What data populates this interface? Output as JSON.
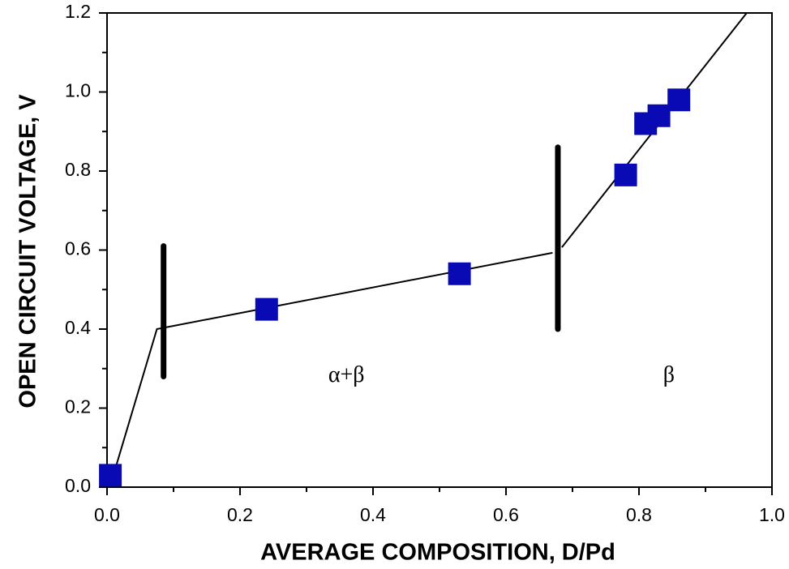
{
  "chart_data": {
    "type": "scatter",
    "x_label": "AVERAGE COMPOSITION, D/Pd",
    "y_label": "OPEN CIRCUIT VOLTAGE, V",
    "x": [
      0.005,
      0.24,
      0.53,
      0.78,
      0.81,
      0.83,
      0.86
    ],
    "values": [
      0.03,
      0.45,
      0.54,
      0.79,
      0.92,
      0.94,
      0.98
    ],
    "color": "#0a0ab4",
    "xlim": [
      0,
      1
    ],
    "ylim": [
      0,
      1.2
    ],
    "xticks": [
      {
        "value": 0,
        "label": "0.0"
      },
      {
        "value": 0.2,
        "label": "0.2"
      },
      {
        "value": 0.4,
        "label": "0.4"
      },
      {
        "value": 0.6,
        "label": "0.6"
      },
      {
        "value": 0.8,
        "label": "0.8"
      },
      {
        "value": 1,
        "label": "1.0"
      }
    ],
    "yticks": [
      {
        "value": 0,
        "label": "0.0"
      },
      {
        "value": 0.2,
        "label": "0.2"
      },
      {
        "value": 0.4,
        "label": "0.4"
      },
      {
        "value": 0.6,
        "label": "0.6"
      },
      {
        "value": 0.8,
        "label": "0.8"
      },
      {
        "value": 1,
        "label": "1.0"
      },
      {
        "value": 1.2,
        "label": "1.2"
      }
    ],
    "x_minor_ticks": [
      0.1,
      0.3,
      0.5,
      0.7,
      0.9
    ],
    "y_minor_ticks": [
      0.1,
      0.3,
      0.5,
      0.7,
      0.9,
      1.1
    ],
    "fit_lines": [
      {
        "x": [
          0.01,
          0.075,
          0.67
        ],
        "y": [
          0.033,
          0.4,
          0.593
        ]
      },
      {
        "x": [
          0.684,
          0.962
        ],
        "y": [
          0.607,
          1.2
        ]
      }
    ],
    "phase_boundaries": [
      {
        "x": 0.085,
        "y": [
          0.28,
          0.61
        ]
      },
      {
        "x": 0.678,
        "y": [
          0.4,
          0.86
        ]
      }
    ],
    "annotations": [
      {
        "text": "α+β",
        "x": 0.36,
        "y": 0.28
      },
      {
        "text": "β",
        "x": 0.845,
        "y": 0.28
      }
    ]
  }
}
